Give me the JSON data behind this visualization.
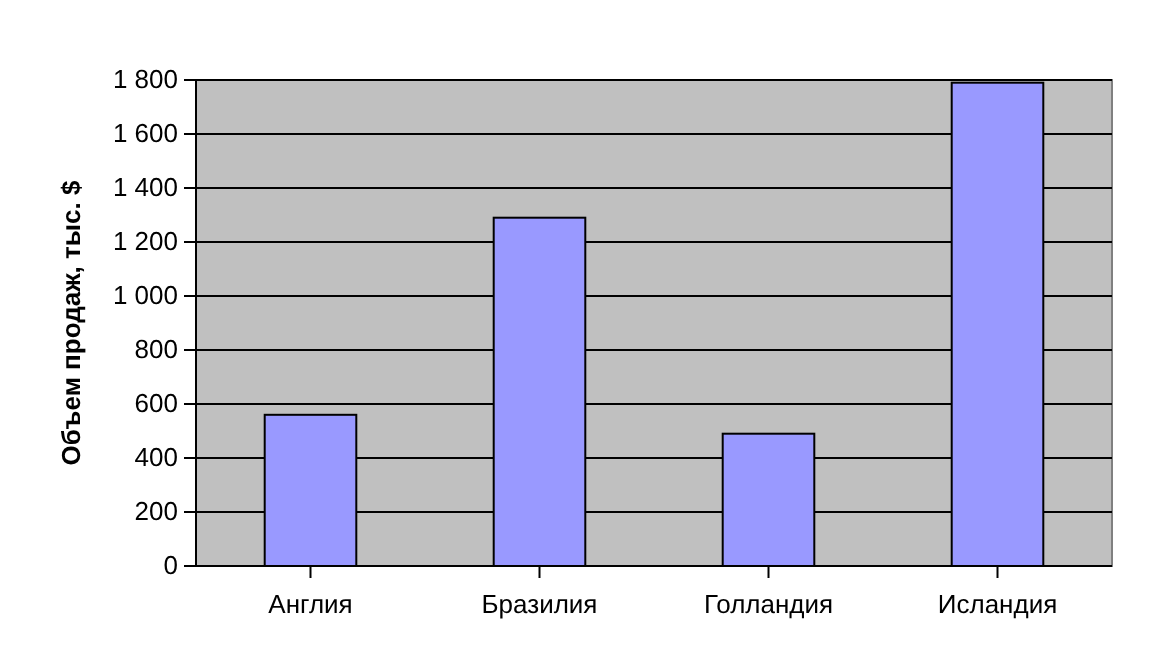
{
  "chart_data": {
    "type": "bar",
    "ylabel": "Объем продаж, тыс. $",
    "categories": [
      "Англия",
      "Бразилия",
      "Голландия",
      "Исландия"
    ],
    "values": [
      560,
      1290,
      490,
      1790
    ],
    "color": "#9999ff",
    "ylim": [
      0,
      1800
    ],
    "yticks": [
      0,
      200,
      400,
      600,
      800,
      {
        "value": 1000,
        "label": "1 000"
      },
      {
        "value": 1200,
        "label": "1 200"
      },
      {
        "value": 1400,
        "label": "1 400"
      },
      {
        "value": 1600,
        "label": "1 600"
      },
      {
        "value": 1800,
        "label": "1 800"
      }
    ],
    "grid": "y"
  }
}
